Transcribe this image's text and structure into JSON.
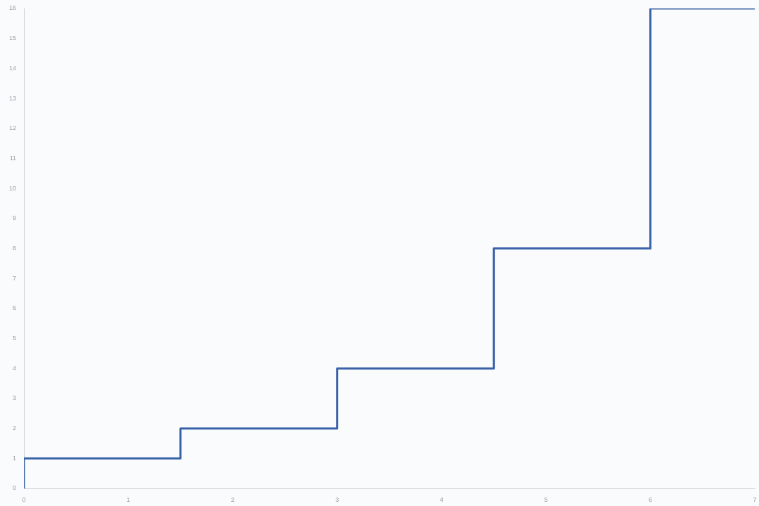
{
  "chart_data": {
    "type": "step",
    "x": [
      0,
      0,
      1.5,
      3,
      4.5,
      6,
      7
    ],
    "series": [
      {
        "color": "#3a62a8",
        "values": [
          0,
          1,
          2,
          4,
          8,
          16,
          16
        ]
      }
    ],
    "xlim": [
      0,
      7
    ],
    "xticks": [
      0,
      1,
      2,
      3,
      4,
      5,
      6,
      7
    ],
    "ylim": [
      0,
      16
    ],
    "yticks": [
      0,
      1,
      2,
      3,
      4,
      5,
      6,
      7,
      8,
      9,
      10,
      11,
      12,
      13,
      14,
      15,
      16
    ],
    "grid": false,
    "legend": false,
    "marker": "none",
    "line_style": "solid"
  }
}
